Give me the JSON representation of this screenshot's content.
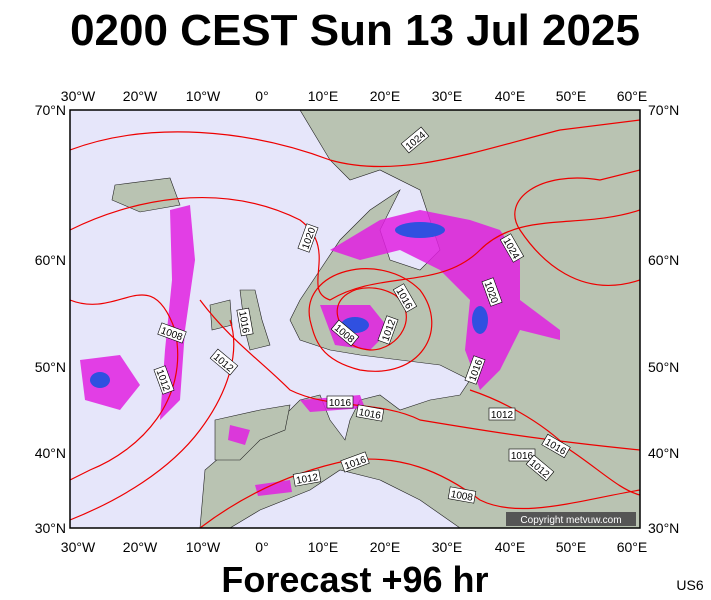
{
  "header": {
    "title": "0200 CEST Sun 13 Jul 2025"
  },
  "footer": {
    "subtitle": "Forecast +96 hr",
    "code": "US6"
  },
  "axes": {
    "longitudes": [
      "30°W",
      "20°W",
      "10°W",
      "0°",
      "10°E",
      "20°E",
      "30°E",
      "40°E",
      "50°E",
      "60°E"
    ],
    "latitudes": [
      "70°N",
      "60°N",
      "50°N",
      "40°N",
      "30°N"
    ]
  },
  "isobars": [
    "1024",
    "1020",
    "1016",
    "1012",
    "1008",
    "1016",
    "1008",
    "1012",
    "1012",
    "1016",
    "1024",
    "1020",
    "1016",
    "1016",
    "1012",
    "1016",
    "1016",
    "1012",
    "1016",
    "1012",
    "1008"
  ],
  "copyright": "Copyright metvuw.com"
}
